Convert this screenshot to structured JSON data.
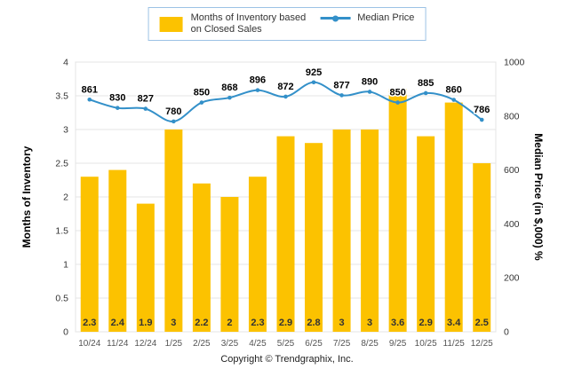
{
  "legend": {
    "bar_label_line1": "Months of Inventory based",
    "bar_label_line2": "on Closed Sales",
    "line_label": "Median Price"
  },
  "footer": {
    "copyright": "Copyright © Trendgraphix, Inc."
  },
  "chart_data": {
    "type": "bar+line",
    "categories": [
      "10/24",
      "11/24",
      "12/24",
      "1/25",
      "2/25",
      "3/25",
      "4/25",
      "5/25",
      "6/25",
      "7/25",
      "8/25",
      "9/25",
      "10/25",
      "11/25",
      "12/25"
    ],
    "series": [
      {
        "name": "Months of Inventory based on Closed Sales",
        "type": "bar",
        "axis": "left",
        "values": [
          2.3,
          2.4,
          1.9,
          3,
          2.2,
          2,
          2.3,
          2.9,
          2.8,
          3,
          3,
          3.6,
          2.9,
          3.4,
          2.5
        ]
      },
      {
        "name": "Median Price",
        "type": "line",
        "axis": "right",
        "values": [
          861,
          830,
          827,
          780,
          850,
          868,
          896,
          872,
          925,
          877,
          890,
          850,
          885,
          860,
          786
        ]
      }
    ],
    "left_axis": {
      "title": "Months of Inventory",
      "min": 0,
      "max": 4,
      "ticks": [
        "0",
        "0.5",
        "1",
        "1.5",
        "2",
        "2.5",
        "3",
        "3.5",
        "4"
      ]
    },
    "right_axis": {
      "title": "Median Price (in $,000) %",
      "min": 0,
      "max": 1000,
      "ticks": [
        "0",
        "200",
        "400",
        "600",
        "800",
        "1000"
      ]
    },
    "grid": true,
    "legend_position": "top",
    "colors": {
      "bar": "#FCC200",
      "bar_label": "#333333",
      "line": "#3390C9",
      "line_label": "#000000",
      "grid": "#E4E4E4",
      "axis_text": "#333333",
      "x_label": "#555555",
      "legend_border": "#9CC2E5"
    }
  }
}
